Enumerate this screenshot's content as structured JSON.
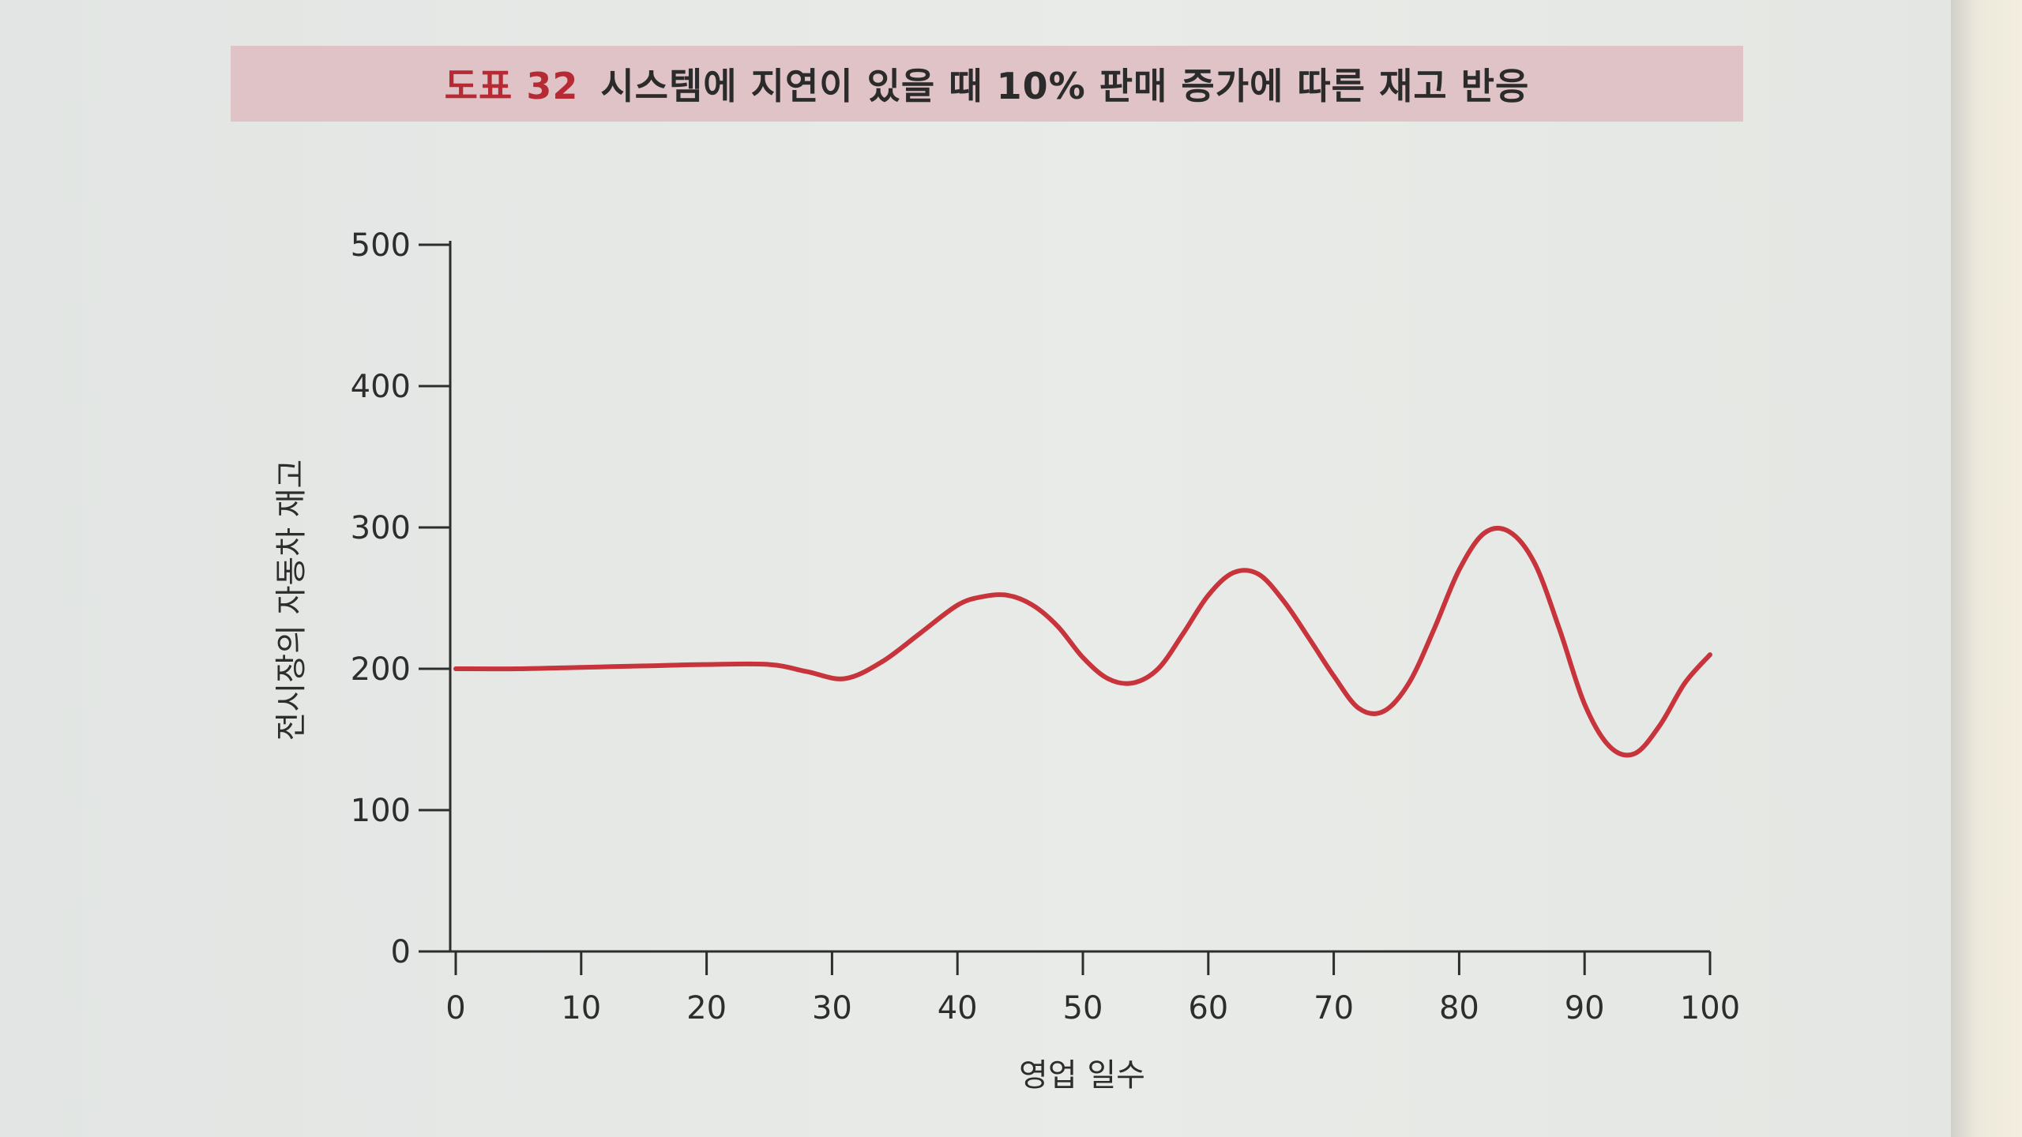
{
  "title": {
    "number": "도표 32",
    "text": "시스템에 지연이 있을 때 10% 판매 증가에 따른 재고 반응"
  },
  "chart_data": {
    "type": "line",
    "xlabel": "영업 일수",
    "ylabel": "전시장의 자동차 재고",
    "xlim": [
      0,
      100
    ],
    "ylim": [
      0,
      500
    ],
    "x_ticks": [
      "0",
      "10",
      "20",
      "30",
      "40",
      "50",
      "60",
      "70",
      "80",
      "90",
      "100"
    ],
    "y_ticks": [
      "0",
      "100",
      "200",
      "300",
      "400",
      "500"
    ],
    "grid": false,
    "line_color": "#c8343c",
    "series": [
      {
        "x": [
          0,
          5,
          10,
          15,
          20,
          25,
          28,
          31,
          34,
          37,
          40,
          42,
          44,
          46,
          48,
          50,
          52,
          54,
          56,
          58,
          60,
          62,
          64,
          66,
          68,
          70,
          72,
          74,
          76,
          78,
          80,
          82,
          84,
          86,
          88,
          90,
          92,
          94,
          96,
          98,
          100
        ],
        "y": [
          200,
          200,
          201,
          202,
          203,
          203,
          198,
          193,
          205,
          225,
          245,
          251,
          252,
          245,
          230,
          208,
          193,
          190,
          200,
          225,
          252,
          268,
          267,
          248,
          222,
          195,
          172,
          170,
          190,
          228,
          270,
          296,
          297,
          275,
          228,
          175,
          145,
          140,
          160,
          190,
          210
        ]
      }
    ]
  }
}
